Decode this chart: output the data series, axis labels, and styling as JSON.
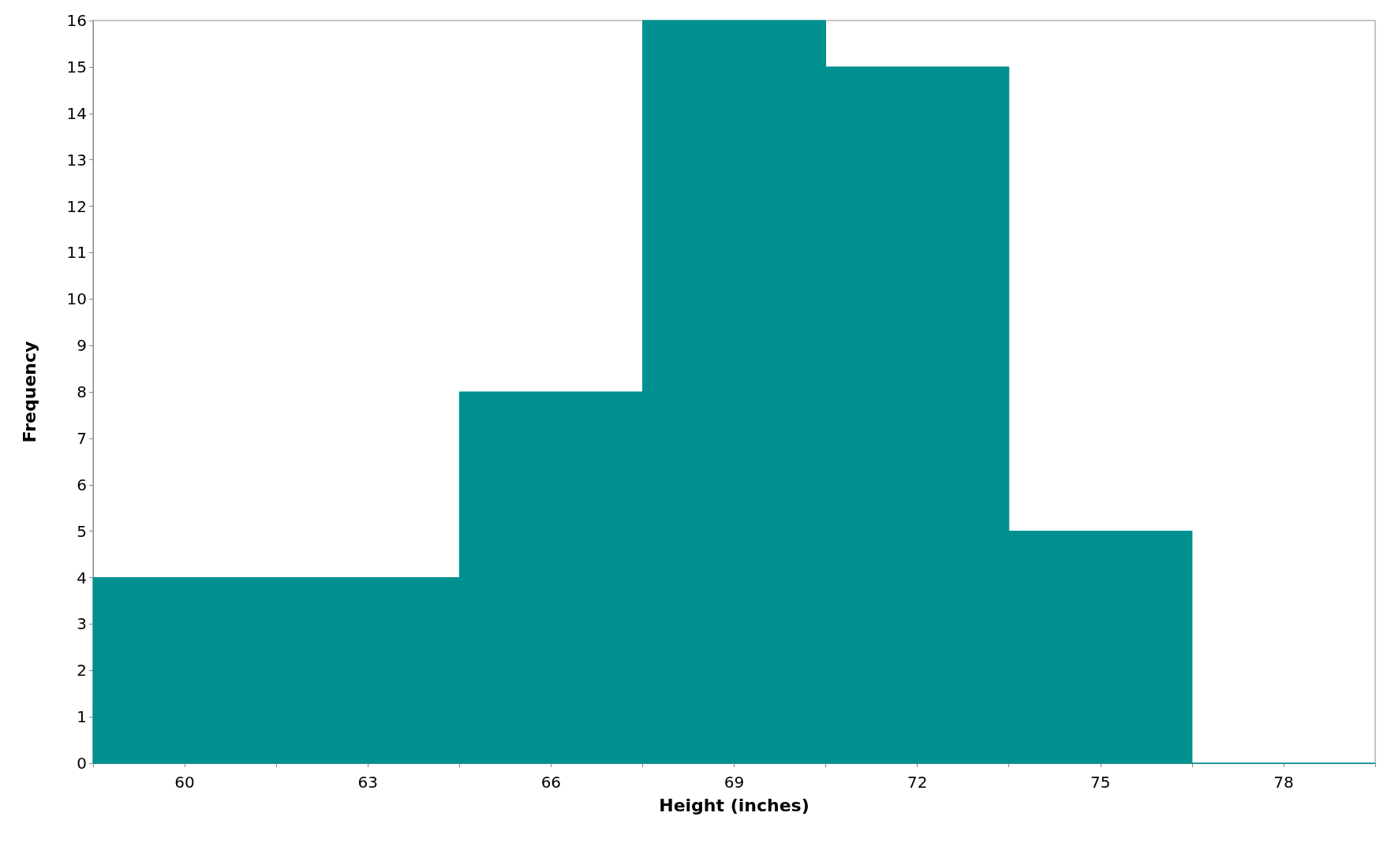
{
  "chart_data": {
    "type": "histogram",
    "xlabel": "Height (inches)",
    "ylabel": "Frequency",
    "bins": [
      58.5,
      61.5,
      64.5,
      67.5,
      70.5,
      73.5,
      76.5,
      79.5
    ],
    "values": [
      4,
      4,
      8,
      16,
      15,
      5,
      0
    ],
    "color": "#009090",
    "xlim": [
      58.5,
      79.5
    ],
    "xticks": [
      {
        "value": 58.5,
        "label": null
      },
      60,
      {
        "value": 61.5,
        "label": null
      },
      63,
      {
        "value": 64.5,
        "label": null
      },
      66,
      {
        "value": 67.5,
        "label": null
      },
      69,
      {
        "value": 70.5,
        "label": null
      },
      72,
      {
        "value": 73.5,
        "label": null
      },
      75,
      {
        "value": 76.5,
        "label": null
      },
      78,
      {
        "value": 79.5,
        "label": null
      }
    ],
    "ylim": [
      0,
      16
    ],
    "yticks": [
      0,
      1,
      2,
      3,
      4,
      5,
      6,
      7,
      8,
      9,
      10,
      11,
      12,
      13,
      14,
      15,
      16
    ],
    "grid": false
  }
}
